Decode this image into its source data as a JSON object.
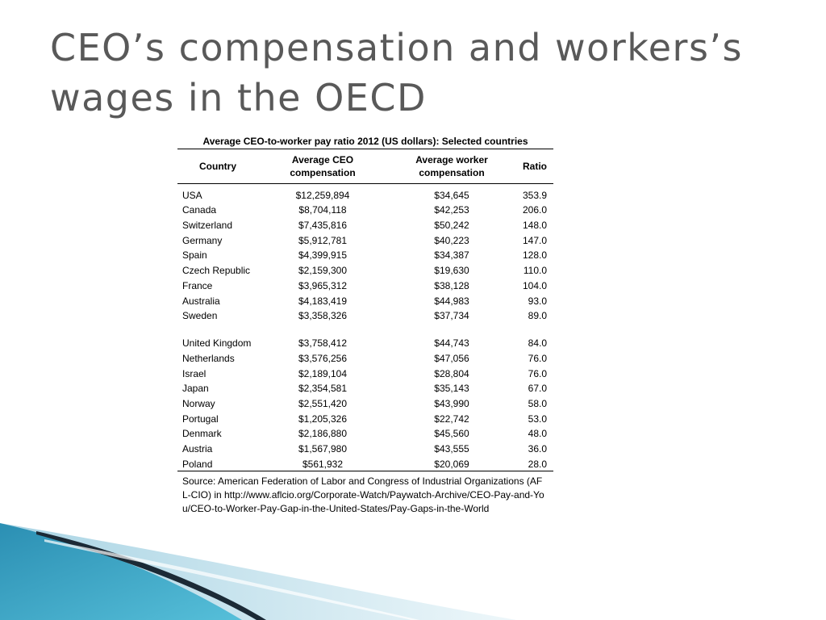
{
  "slide": {
    "title": "CEO’s compensation and workers’s wages in the OECD"
  },
  "table": {
    "caption": "Average CEO-to-worker pay ratio 2012 (US dollars): Selected countries",
    "headers": {
      "country": "Country",
      "ceo": "Average CEO compensation",
      "worker": "Average worker compensation",
      "ratio": "Ratio"
    },
    "rows": [
      {
        "country": "USA",
        "ceo": "$12,259,894",
        "worker": "$34,645",
        "ratio": "353.9"
      },
      {
        "country": "Canada",
        "ceo": "$8,704,118",
        "worker": "$42,253",
        "ratio": "206.0"
      },
      {
        "country": "Switzerland",
        "ceo": "$7,435,816",
        "worker": "$50,242",
        "ratio": "148.0"
      },
      {
        "country": "Germany",
        "ceo": "$5,912,781",
        "worker": "$40,223",
        "ratio": "147.0"
      },
      {
        "country": "Spain",
        "ceo": "$4,399,915",
        "worker": "$34,387",
        "ratio": "128.0"
      },
      {
        "country": "Czech Republic",
        "ceo": "$2,159,300",
        "worker": "$19,630",
        "ratio": "110.0"
      },
      {
        "country": "France",
        "ceo": "$3,965,312",
        "worker": "$38,128",
        "ratio": "104.0"
      },
      {
        "country": "Australia",
        "ceo": "$4,183,419",
        "worker": "$44,983",
        "ratio": "93.0"
      },
      {
        "country": "Sweden",
        "ceo": "$3,358,326",
        "worker": "$37,734",
        "ratio": "89.0"
      },
      {
        "country": "United Kingdom",
        "ceo": "$3,758,412",
        "worker": "$44,743",
        "ratio": "84.0"
      },
      {
        "country": "Netherlands",
        "ceo": "$3,576,256",
        "worker": "$47,056",
        "ratio": "76.0"
      },
      {
        "country": "Israel",
        "ceo": "$2,189,104",
        "worker": "$28,804",
        "ratio": "76.0"
      },
      {
        "country": "Japan",
        "ceo": "$2,354,581",
        "worker": "$35,143",
        "ratio": "67.0"
      },
      {
        "country": "Norway",
        "ceo": "$2,551,420",
        "worker": "$43,990",
        "ratio": "58.0"
      },
      {
        "country": "Portugal",
        "ceo": "$1,205,326",
        "worker": "$22,742",
        "ratio": "53.0"
      },
      {
        "country": "Denmark",
        "ceo": "$2,186,880",
        "worker": "$45,560",
        "ratio": "48.0"
      },
      {
        "country": "Austria",
        "ceo": "$1,567,980",
        "worker": "$43,555",
        "ratio": "36.0"
      },
      {
        "country": "Poland",
        "ceo": "$561,932",
        "worker": "$20,069",
        "ratio": "28.0"
      }
    ],
    "source": "Source: American Federation of Labor and Congress of Industrial Organizations (AFL-CIO) in http://www.aflcio.org/Corporate-Watch/Paywatch-Archive/CEO-Pay-and-You/CEO-to-Worker-Pay-Gap-in-the-United-States/Pay-Gaps-in-the-World"
  },
  "theme": {
    "title_color": "#595959",
    "accent_teal": "#3aa7c7",
    "accent_dark": "#1b2a36",
    "accent_light": "#cfe6ef"
  }
}
